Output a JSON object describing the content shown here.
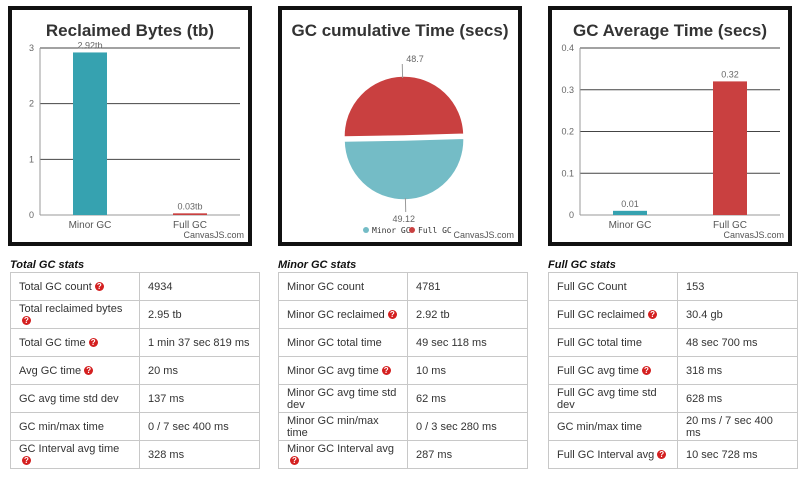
{
  "charts": [
    {
      "type": "bar",
      "title": "Reclaimed Bytes (tb)",
      "categories": [
        "Minor GC",
        "Full GC"
      ],
      "values": [
        2.92,
        0.03
      ],
      "data_labels": [
        "2.92tb",
        "0.03tb"
      ],
      "ylim": [
        0,
        3
      ],
      "yticks": [
        0,
        1,
        2,
        3
      ],
      "colors": [
        "#36a2b0",
        "#c94040"
      ],
      "credit": "CanvasJS.com"
    },
    {
      "type": "pie",
      "title": "GC cumulative Time (secs)",
      "categories": [
        "Minor GC",
        "Full GC"
      ],
      "values": [
        49.12,
        48.7
      ],
      "data_labels": [
        "49.12",
        "48.7"
      ],
      "colors": [
        "#74bcc6",
        "#c94040"
      ],
      "legend": [
        "Minor GC",
        "Full GC"
      ],
      "credit": "CanvasJS.com"
    },
    {
      "type": "bar",
      "title": "GC Average Time (secs)",
      "categories": [
        "Minor GC",
        "Full GC"
      ],
      "values": [
        0.01,
        0.32
      ],
      "data_labels": [
        "0.01",
        "0.32"
      ],
      "ylim": [
        0,
        0.4
      ],
      "yticks": [
        "0",
        "0.1",
        "0.2",
        "0.3",
        "0.4"
      ],
      "colors": [
        "#36a2b0",
        "#c94040"
      ],
      "credit": "CanvasJS.com"
    }
  ],
  "tables": [
    {
      "title": "Total GC stats",
      "rows": [
        {
          "label": "Total GC count",
          "value": "4934",
          "help": true
        },
        {
          "label": "Total reclaimed bytes",
          "value": "2.95 tb",
          "help": true
        },
        {
          "label": "Total GC time",
          "value": "1 min 37 sec 819 ms",
          "help": true
        },
        {
          "label": "Avg GC time",
          "value": "20 ms",
          "help": true
        },
        {
          "label": "GC avg time std dev",
          "value": "137 ms",
          "help": false
        },
        {
          "label": "GC min/max time",
          "value": "0 / 7 sec 400 ms",
          "help": false
        },
        {
          "label": "GC Interval avg time",
          "value": "328 ms",
          "help": true
        }
      ]
    },
    {
      "title": "Minor GC stats",
      "rows": [
        {
          "label": "Minor GC count",
          "value": "4781",
          "help": false
        },
        {
          "label": "Minor GC reclaimed",
          "value": "2.92 tb",
          "help": true
        },
        {
          "label": "Minor GC total time",
          "value": "49 sec 118 ms",
          "help": false
        },
        {
          "label": "Minor GC avg time",
          "value": "10 ms",
          "help": true
        },
        {
          "label": "Minor GC avg time std dev",
          "value": "62 ms",
          "help": false
        },
        {
          "label": "Minor GC min/max time",
          "value": "0 / 3 sec 280 ms",
          "help": false
        },
        {
          "label": "Minor GC Interval avg",
          "value": "287 ms",
          "help": true
        }
      ]
    },
    {
      "title": "Full GC stats",
      "rows": [
        {
          "label": "Full GC Count",
          "value": "153",
          "help": false
        },
        {
          "label": "Full GC reclaimed",
          "value": "30.4 gb",
          "help": true
        },
        {
          "label": "Full GC total time",
          "value": "48 sec 700 ms",
          "help": false
        },
        {
          "label": "Full GC avg time",
          "value": "318 ms",
          "help": true
        },
        {
          "label": "Full GC avg time std dev",
          "value": "628 ms",
          "help": false
        },
        {
          "label": "GC min/max time",
          "value": "20 ms / 7 sec 400 ms",
          "help": false
        },
        {
          "label": "Full GC Interval avg",
          "value": "10 sec 728 ms",
          "help": true
        }
      ]
    }
  ],
  "chart_data": [
    {
      "type": "bar",
      "title": "Reclaimed Bytes (tb)",
      "categories": [
        "Minor GC",
        "Full GC"
      ],
      "values": [
        2.92,
        0.03
      ],
      "ylim": [
        0,
        3
      ],
      "xlabel": "",
      "ylabel": ""
    },
    {
      "type": "pie",
      "title": "GC cumulative Time (secs)",
      "categories": [
        "Minor GC",
        "Full GC"
      ],
      "values": [
        49.12,
        48.7
      ]
    },
    {
      "type": "bar",
      "title": "GC Average Time (secs)",
      "categories": [
        "Minor GC",
        "Full GC"
      ],
      "values": [
        0.01,
        0.32
      ],
      "ylim": [
        0,
        0.4
      ],
      "xlabel": "",
      "ylabel": ""
    }
  ]
}
